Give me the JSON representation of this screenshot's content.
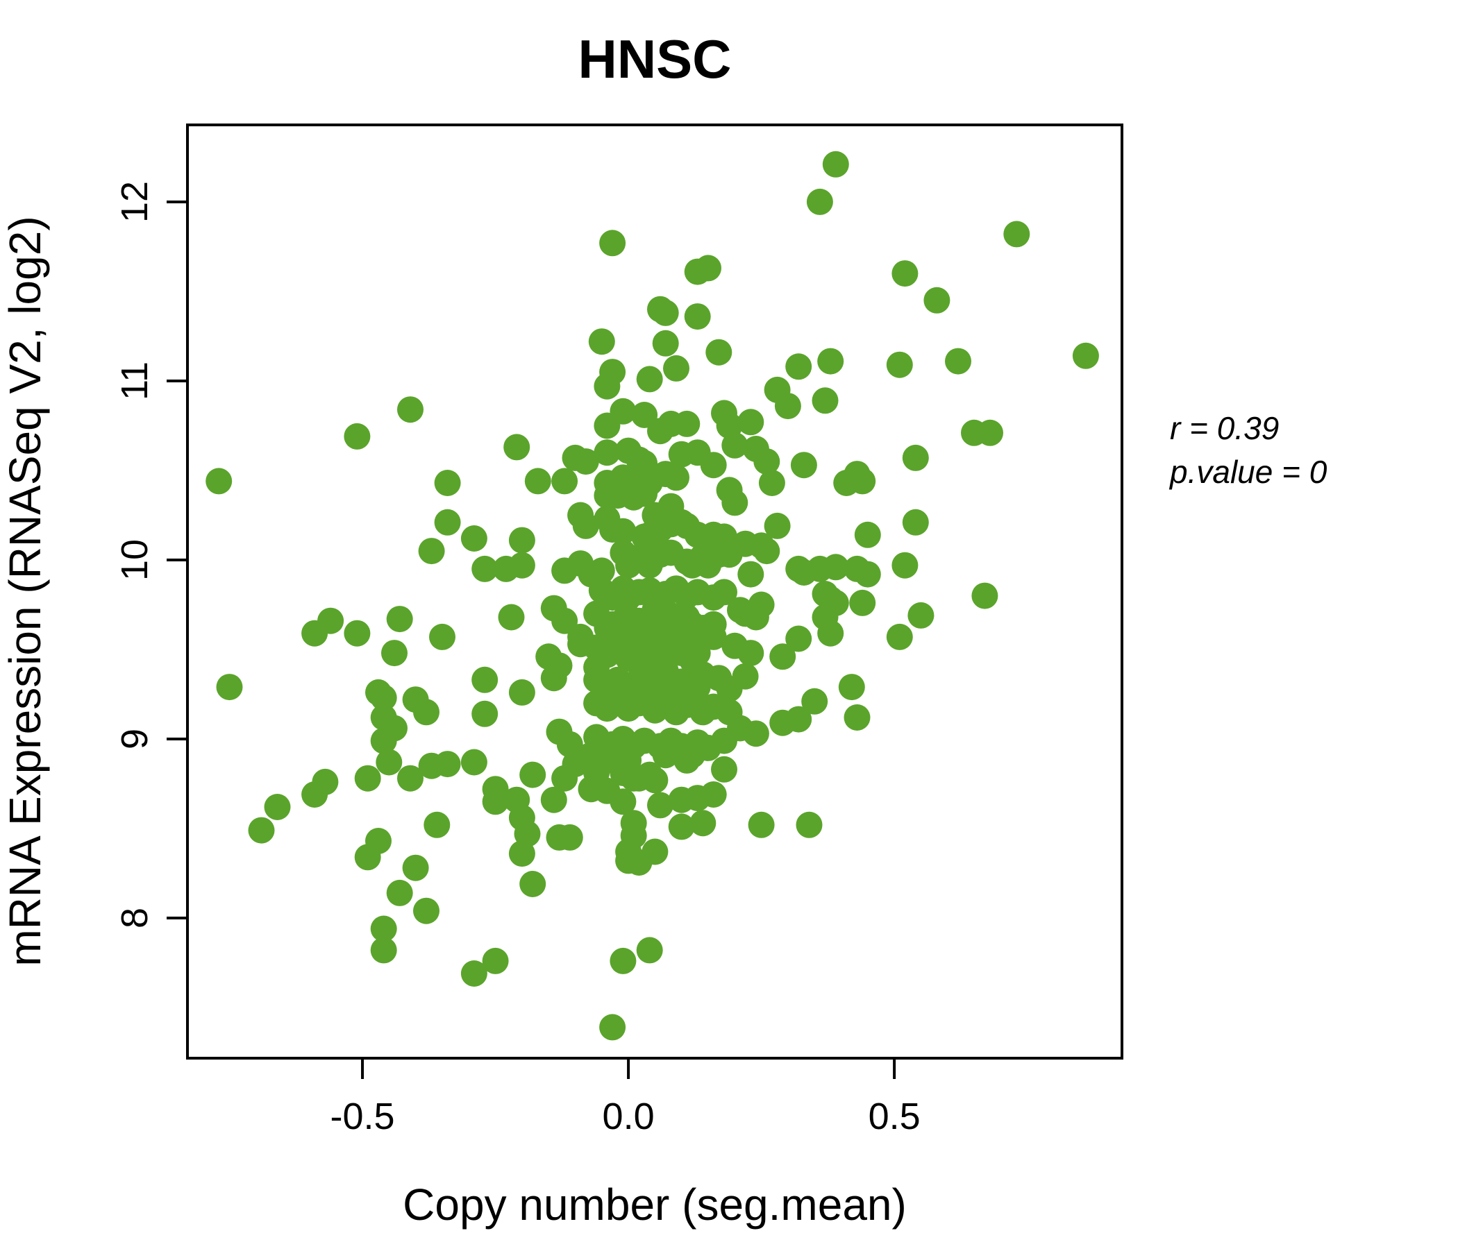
{
  "figure": {
    "background": "#ffffff",
    "axis_color": "#000000"
  },
  "annotation": {
    "line1": "r = 0.39",
    "line2": "p.value = 0"
  },
  "chart_data": {
    "type": "scatter",
    "title": "HNSC",
    "title_color": "#58a428",
    "point_color": "#5aa42b",
    "xlabel": "Copy number (seg.mean)",
    "ylabel": "mRNA Expression (RNASeq V2, log2)",
    "xlim": [
      -0.829,
      0.928
    ],
    "ylim": [
      7.217,
      12.43
    ],
    "grid": false,
    "legend": "none",
    "x_ticks": [
      {
        "value": -0.5,
        "label": "-0.5"
      },
      {
        "value": 0.0,
        "label": "0.0"
      },
      {
        "value": 0.5,
        "label": "0.5"
      }
    ],
    "y_ticks": [
      {
        "value": 8,
        "label": "8"
      },
      {
        "value": 9,
        "label": "9"
      },
      {
        "value": 10,
        "label": "10"
      },
      {
        "value": 11,
        "label": "11"
      },
      {
        "value": 12,
        "label": "12"
      }
    ],
    "stats": {
      "r": 0.39,
      "p_value": 0
    },
    "points": [
      [
        -0.41,
        10.84
      ],
      [
        -0.51,
        10.69
      ],
      [
        -0.03,
        11.77
      ],
      [
        0.13,
        11.61
      ],
      [
        0.15,
        11.63
      ],
      [
        0.06,
        11.4
      ],
      [
        0.07,
        11.38
      ],
      [
        0.13,
        11.36
      ],
      [
        -0.05,
        11.22
      ],
      [
        0.07,
        11.21
      ],
      [
        0.17,
        11.16
      ],
      [
        0.32,
        11.08
      ],
      [
        0.09,
        11.07
      ],
      [
        0.04,
        11.01
      ],
      [
        -0.03,
        11.05
      ],
      [
        -0.04,
        10.97
      ],
      [
        0.28,
        10.95
      ],
      [
        0.3,
        10.86
      ],
      [
        -0.01,
        10.83
      ],
      [
        0.03,
        10.81
      ],
      [
        0.08,
        10.76
      ],
      [
        0.11,
        10.76
      ],
      [
        0.18,
        10.82
      ],
      [
        0.19,
        10.75
      ],
      [
        0.23,
        10.77
      ],
      [
        -0.04,
        10.75
      ],
      [
        0.06,
        10.72
      ],
      [
        0.39,
        12.21
      ],
      [
        0.36,
        12.0
      ],
      [
        0.73,
        11.82
      ],
      [
        0.52,
        11.6
      ],
      [
        0.58,
        11.45
      ],
      [
        0.38,
        11.11
      ],
      [
        0.51,
        11.09
      ],
      [
        0.62,
        11.11
      ],
      [
        0.86,
        11.14
      ],
      [
        0.37,
        10.89
      ],
      [
        0.65,
        10.71
      ],
      [
        0.68,
        10.71
      ],
      [
        -0.77,
        10.44
      ],
      [
        -0.34,
        10.43
      ],
      [
        -0.34,
        10.21
      ],
      [
        -0.29,
        10.12
      ],
      [
        -0.37,
        10.05
      ],
      [
        -0.27,
        9.95
      ],
      [
        -0.56,
        9.66
      ],
      [
        -0.59,
        9.59
      ],
      [
        -0.51,
        9.59
      ],
      [
        -0.43,
        9.67
      ],
      [
        -0.44,
        9.48
      ],
      [
        -0.35,
        9.57
      ],
      [
        -0.75,
        9.29
      ],
      [
        -0.47,
        9.26
      ],
      [
        -0.46,
        9.23
      ],
      [
        -0.4,
        9.22
      ],
      [
        -0.38,
        9.15
      ],
      [
        -0.46,
        9.12
      ],
      [
        -0.44,
        9.06
      ],
      [
        -0.27,
        9.33
      ],
      [
        -0.27,
        9.14
      ],
      [
        -0.46,
        8.99
      ],
      [
        0.54,
        10.57
      ],
      [
        0.41,
        10.43
      ],
      [
        0.43,
        10.48
      ],
      [
        0.44,
        10.44
      ],
      [
        0.54,
        10.21
      ],
      [
        0.45,
        10.14
      ],
      [
        0.36,
        9.95
      ],
      [
        0.39,
        9.96
      ],
      [
        0.43,
        9.95
      ],
      [
        0.45,
        9.92
      ],
      [
        0.52,
        9.97
      ],
      [
        0.37,
        9.81
      ],
      [
        0.38,
        9.78
      ],
      [
        0.39,
        9.76
      ],
      [
        0.37,
        9.68
      ],
      [
        0.44,
        9.76
      ],
      [
        0.67,
        9.8
      ],
      [
        0.55,
        9.69
      ],
      [
        0.38,
        9.59
      ],
      [
        0.51,
        9.57
      ],
      [
        0.42,
        9.29
      ],
      [
        0.35,
        9.21
      ],
      [
        0.43,
        9.12
      ],
      [
        -0.45,
        8.87
      ],
      [
        -0.37,
        8.85
      ],
      [
        -0.34,
        8.86
      ],
      [
        -0.29,
        8.87
      ],
      [
        -0.49,
        8.78
      ],
      [
        -0.41,
        8.78
      ],
      [
        -0.57,
        8.76
      ],
      [
        -0.59,
        8.69
      ],
      [
        -0.66,
        8.62
      ],
      [
        -0.25,
        8.72
      ],
      [
        -0.25,
        8.65
      ],
      [
        -0.69,
        8.49
      ],
      [
        -0.36,
        8.52
      ],
      [
        -0.47,
        8.43
      ],
      [
        -0.49,
        8.34
      ],
      [
        -0.4,
        8.28
      ],
      [
        -0.43,
        8.14
      ],
      [
        -0.38,
        8.04
      ],
      [
        -0.46,
        7.94
      ],
      [
        -0.46,
        7.82
      ],
      [
        -0.29,
        7.69
      ],
      [
        -0.25,
        7.76
      ],
      [
        -0.18,
        8.8
      ],
      [
        -0.21,
        8.66
      ],
      [
        -0.2,
        8.56
      ],
      [
        -0.19,
        8.47
      ],
      [
        -0.2,
        8.36
      ],
      [
        -0.18,
        8.19
      ],
      [
        -0.12,
        8.78
      ],
      [
        -0.1,
        8.86
      ],
      [
        -0.14,
        8.66
      ],
      [
        -0.13,
        8.45
      ],
      [
        -0.11,
        8.45
      ],
      [
        -0.07,
        8.72
      ],
      [
        -0.06,
        8.81
      ],
      [
        -0.04,
        8.71
      ],
      [
        -0.07,
        8.91
      ],
      [
        -0.05,
        8.88
      ],
      [
        -0.03,
        8.88
      ],
      [
        -0.02,
        8.9
      ],
      [
        0.0,
        8.88
      ],
      [
        -0.01,
        8.81
      ],
      [
        0.01,
        8.78
      ],
      [
        0.02,
        8.78
      ],
      [
        0.04,
        8.8
      ],
      [
        0.05,
        8.77
      ],
      [
        -0.01,
        8.65
      ],
      [
        0.01,
        8.53
      ],
      [
        0.01,
        8.46
      ],
      [
        0.0,
        8.37
      ],
      [
        0.0,
        8.32
      ],
      [
        0.02,
        8.31
      ],
      [
        0.05,
        8.37
      ],
      [
        0.06,
        8.63
      ],
      [
        0.07,
        8.91
      ],
      [
        0.11,
        8.88
      ],
      [
        0.12,
        8.91
      ],
      [
        0.18,
        8.83
      ],
      [
        0.1,
        8.66
      ],
      [
        0.13,
        8.67
      ],
      [
        0.16,
        8.69
      ],
      [
        0.14,
        8.53
      ],
      [
        0.1,
        8.51
      ],
      [
        0.25,
        8.52
      ],
      [
        0.34,
        8.52
      ],
      [
        0.04,
        7.82
      ],
      [
        -0.01,
        7.76
      ],
      [
        -0.03,
        7.39
      ],
      [
        -0.21,
        10.63
      ],
      [
        -0.1,
        10.57
      ],
      [
        -0.08,
        10.55
      ],
      [
        -0.04,
        10.6
      ],
      [
        0.0,
        10.61
      ],
      [
        0.02,
        10.56
      ],
      [
        0.03,
        10.54
      ],
      [
        0.1,
        10.59
      ],
      [
        0.13,
        10.6
      ],
      [
        0.16,
        10.53
      ],
      [
        0.2,
        10.64
      ],
      [
        0.24,
        10.62
      ],
      [
        0.26,
        10.55
      ],
      [
        0.33,
        10.53
      ],
      [
        -0.17,
        10.44
      ],
      [
        -0.12,
        10.44
      ],
      [
        -0.04,
        10.43
      ],
      [
        -0.01,
        10.46
      ],
      [
        0.01,
        10.43
      ],
      [
        0.04,
        10.43
      ],
      [
        0.07,
        10.48
      ],
      [
        0.09,
        10.46
      ],
      [
        0.19,
        10.39
      ],
      [
        0.27,
        10.43
      ],
      [
        -0.04,
        10.36
      ],
      [
        -0.02,
        10.36
      ],
      [
        0.01,
        10.35
      ],
      [
        0.03,
        10.37
      ],
      [
        0.2,
        10.32
      ],
      [
        0.08,
        10.3
      ],
      [
        0.05,
        10.25
      ],
      [
        -0.09,
        10.25
      ],
      [
        -0.08,
        10.19
      ],
      [
        -0.04,
        10.23
      ],
      [
        -0.03,
        10.17
      ],
      [
        -0.01,
        10.16
      ],
      [
        0.06,
        10.17
      ],
      [
        0.08,
        10.2
      ],
      [
        0.1,
        10.21
      ],
      [
        0.11,
        10.19
      ],
      [
        0.13,
        10.14
      ],
      [
        0.16,
        10.14
      ],
      [
        0.18,
        10.13
      ],
      [
        0.28,
        10.19
      ],
      [
        0.03,
        10.13
      ],
      [
        0.04,
        10.14
      ],
      [
        -0.2,
        10.11
      ],
      [
        0.22,
        10.09
      ],
      [
        0.25,
        10.08
      ],
      [
        0.26,
        10.05
      ],
      [
        -0.01,
        10.04
      ],
      [
        0.03,
        10.03
      ],
      [
        0.06,
        10.03
      ],
      [
        0.08,
        10.04
      ],
      [
        0.14,
        10.02
      ],
      [
        0.17,
        10.03
      ],
      [
        0.19,
        10.03
      ],
      [
        -0.2,
        9.97
      ],
      [
        -0.23,
        9.95
      ],
      [
        -0.12,
        9.94
      ],
      [
        -0.09,
        9.98
      ],
      [
        -0.07,
        9.92
      ],
      [
        -0.05,
        9.94
      ],
      [
        0.0,
        9.97
      ],
      [
        0.01,
        10.01
      ],
      [
        0.04,
        9.97
      ],
      [
        0.11,
        9.99
      ],
      [
        0.12,
        9.97
      ],
      [
        0.15,
        9.97
      ],
      [
        0.23,
        9.92
      ],
      [
        0.32,
        9.95
      ],
      [
        0.33,
        9.93
      ],
      [
        -0.05,
        9.83
      ],
      [
        -0.03,
        9.79
      ],
      [
        -0.01,
        9.84
      ],
      [
        0.0,
        9.79
      ],
      [
        0.02,
        9.82
      ],
      [
        0.04,
        9.83
      ],
      [
        0.05,
        9.77
      ],
      [
        0.07,
        9.81
      ],
      [
        0.09,
        9.84
      ],
      [
        0.11,
        9.8
      ],
      [
        0.13,
        9.82
      ],
      [
        0.16,
        9.79
      ],
      [
        0.18,
        9.82
      ],
      [
        0.21,
        9.72
      ],
      [
        0.25,
        9.75
      ],
      [
        -0.14,
        9.73
      ],
      [
        -0.22,
        9.68
      ],
      [
        -0.12,
        9.66
      ],
      [
        -0.06,
        9.7
      ],
      [
        -0.03,
        9.64
      ],
      [
        -0.01,
        9.66
      ],
      [
        0.01,
        9.63
      ],
      [
        0.02,
        9.66
      ],
      [
        0.04,
        9.62
      ],
      [
        0.06,
        9.66
      ],
      [
        0.08,
        9.63
      ],
      [
        0.1,
        9.6
      ],
      [
        0.12,
        9.64
      ],
      [
        0.14,
        9.62
      ],
      [
        0.16,
        9.64
      ],
      [
        0.22,
        9.7
      ],
      [
        0.24,
        9.68
      ],
      [
        -0.15,
        9.46
      ],
      [
        -0.13,
        9.41
      ],
      [
        -0.09,
        9.53
      ],
      [
        -0.06,
        9.51
      ],
      [
        -0.04,
        9.47
      ],
      [
        -0.02,
        9.49
      ],
      [
        0.0,
        9.45
      ],
      [
        0.02,
        9.48
      ],
      [
        0.04,
        9.44
      ],
      [
        0.05,
        9.48
      ],
      [
        0.07,
        9.45
      ],
      [
        0.1,
        9.48
      ],
      [
        0.12,
        9.44
      ],
      [
        0.13,
        9.48
      ],
      [
        0.2,
        9.52
      ],
      [
        0.23,
        9.48
      ],
      [
        0.29,
        9.46
      ],
      [
        0.32,
        9.56
      ],
      [
        -0.2,
        9.26
      ],
      [
        -0.14,
        9.34
      ],
      [
        -0.06,
        9.33
      ],
      [
        -0.04,
        9.3
      ],
      [
        -0.02,
        9.33
      ],
      [
        0.0,
        9.3
      ],
      [
        0.02,
        9.33
      ],
      [
        0.04,
        9.29
      ],
      [
        0.06,
        9.32
      ],
      [
        0.08,
        9.29
      ],
      [
        0.1,
        9.32
      ],
      [
        0.13,
        9.29
      ],
      [
        0.17,
        9.34
      ],
      [
        0.19,
        9.28
      ],
      [
        0.22,
        9.35
      ],
      [
        -0.06,
        9.2
      ],
      [
        -0.04,
        9.17
      ],
      [
        -0.02,
        9.21
      ],
      [
        0.0,
        9.17
      ],
      [
        0.02,
        9.2
      ],
      [
        0.05,
        9.16
      ],
      [
        0.07,
        9.19
      ],
      [
        0.09,
        9.15
      ],
      [
        0.11,
        9.19
      ],
      [
        0.14,
        9.15
      ],
      [
        0.16,
        9.18
      ],
      [
        0.19,
        9.15
      ],
      [
        0.29,
        9.09
      ],
      [
        0.32,
        9.11
      ],
      [
        -0.13,
        9.04
      ],
      [
        -0.11,
        8.97
      ],
      [
        -0.06,
        9.01
      ],
      [
        -0.03,
        8.97
      ],
      [
        -0.01,
        9.0
      ],
      [
        0.01,
        8.96
      ],
      [
        0.03,
        8.99
      ],
      [
        0.06,
        8.96
      ],
      [
        0.08,
        8.99
      ],
      [
        0.1,
        8.96
      ],
      [
        0.13,
        8.98
      ],
      [
        0.15,
        8.95
      ],
      [
        0.18,
        8.99
      ],
      [
        0.21,
        9.06
      ],
      [
        0.24,
        9.03
      ],
      [
        0.05,
        9.55
      ],
      [
        0.09,
        9.52
      ],
      [
        -0.02,
        9.58
      ],
      [
        0.12,
        9.49
      ],
      [
        0.02,
        9.42
      ],
      [
        0.07,
        9.38
      ],
      [
        -0.06,
        9.4
      ],
      [
        0.14,
        9.36
      ],
      [
        0.1,
        9.61
      ],
      [
        0.0,
        9.68
      ],
      [
        0.05,
        9.72
      ],
      [
        -0.09,
        9.57
      ],
      [
        0.16,
        9.57
      ],
      [
        0.06,
        9.6
      ],
      [
        0.11,
        9.68
      ],
      [
        0.03,
        9.53
      ],
      [
        -0.04,
        9.62
      ],
      [
        0.08,
        9.69
      ],
      [
        0.13,
        9.58
      ],
      [
        0.01,
        9.49
      ]
    ]
  }
}
